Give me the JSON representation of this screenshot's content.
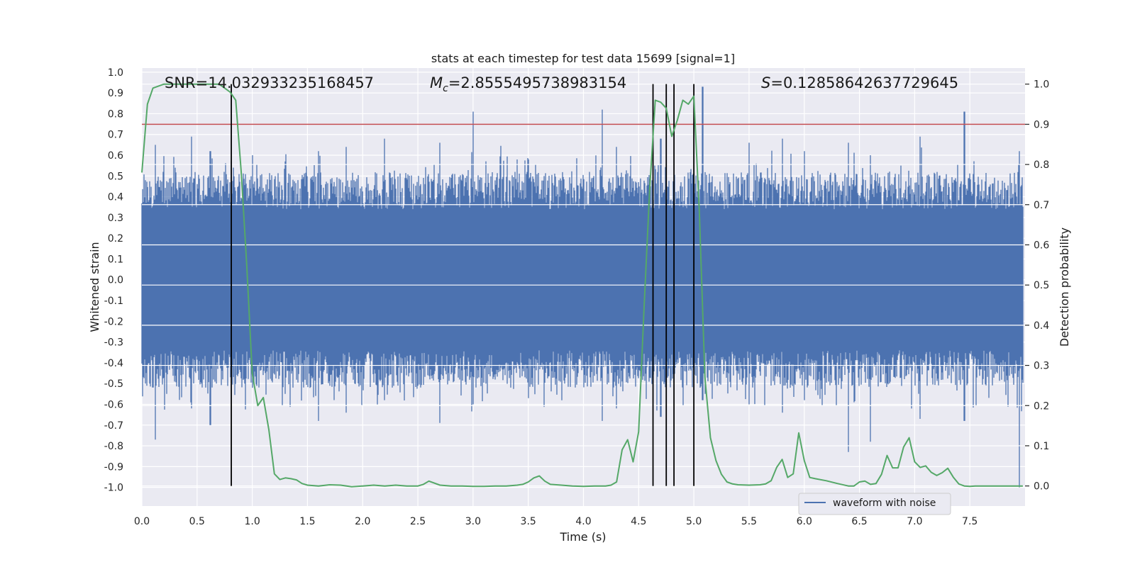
{
  "chart_data": {
    "type": "line",
    "title": "stats at each timestep for test data 15699 [signal=1]",
    "xlabel": "Time (s)",
    "ylabel_left": "Whitened strain",
    "ylabel_right": "Detection probability",
    "xlim": [
      0.0,
      8.0
    ],
    "ylim_left": [
      -1.09,
      1.02
    ],
    "ylim_right": [
      -0.05,
      1.04
    ],
    "x_ticks": [
      "0.0",
      "0.5",
      "1.0",
      "1.5",
      "2.0",
      "2.5",
      "3.0",
      "3.5",
      "4.0",
      "4.5",
      "5.0",
      "5.5",
      "6.0",
      "6.5",
      "7.0",
      "7.5"
    ],
    "y_left_ticks": [
      "1.0",
      "0.9",
      "0.8",
      "0.7",
      "0.6",
      "0.5",
      "0.4",
      "0.3",
      "0.2",
      "0.1",
      "0.0",
      "-0.1",
      "-0.2",
      "-0.3",
      "-0.4",
      "-0.5",
      "-0.6",
      "-0.7",
      "-0.8",
      "-0.9",
      "-1.0"
    ],
    "y_right_ticks": [
      "0.0",
      "0.1",
      "0.2",
      "0.3",
      "0.4",
      "0.5",
      "0.6",
      "0.7",
      "0.8",
      "0.9",
      "1.0"
    ],
    "grid": true,
    "legend_position": "lower-right",
    "annotations": {
      "snr": "SNR=14.032933235168457",
      "mc_symbol": "M",
      "mc_sub": "c",
      "mc_value": "=2.8555495738983154",
      "s_symbol": "S",
      "s_value": "=0.12858642637729645"
    },
    "threshold": {
      "value": 0.9,
      "axis": "right",
      "color": "#c44e52"
    },
    "vertical_lines_x": [
      0.81,
      4.63,
      4.75,
      4.82,
      5.0
    ],
    "series": [
      {
        "name": "waveform with noise",
        "axis": "left",
        "color": "#4c72b0",
        "envelope_peaks": [
          [
            0.03,
            0.48,
            -0.5
          ],
          [
            0.12,
            0.65,
            -0.77
          ],
          [
            0.45,
            0.69,
            -0.62
          ],
          [
            0.62,
            0.62,
            -0.7
          ],
          [
            1.0,
            0.6,
            -0.52
          ],
          [
            1.3,
            0.57,
            -0.55
          ],
          [
            1.6,
            0.62,
            -0.68
          ],
          [
            1.85,
            0.64,
            -0.64
          ],
          [
            2.2,
            0.68,
            -0.58
          ],
          [
            2.7,
            0.66,
            -0.69
          ],
          [
            3.0,
            0.81,
            -0.6
          ],
          [
            3.5,
            0.58,
            -0.57
          ],
          [
            4.17,
            0.82,
            -0.68
          ],
          [
            4.3,
            0.64,
            -0.62
          ],
          [
            4.7,
            0.68,
            -0.66
          ],
          [
            5.08,
            0.93,
            -0.58
          ],
          [
            5.5,
            0.66,
            -0.6
          ],
          [
            5.8,
            0.68,
            -0.64
          ],
          [
            6.0,
            0.62,
            -0.58
          ],
          [
            6.4,
            0.66,
            -0.83
          ],
          [
            6.6,
            0.6,
            -0.78
          ],
          [
            7.05,
            0.69,
            -0.67
          ],
          [
            7.45,
            0.81,
            -0.68
          ],
          [
            7.95,
            0.62,
            -1.0
          ]
        ]
      },
      {
        "name": "",
        "axis": "right",
        "color": "#55a868",
        "x": [
          0.0,
          0.05,
          0.1,
          0.2,
          0.3,
          0.4,
          0.5,
          0.6,
          0.7,
          0.75,
          0.8,
          0.85,
          0.9,
          0.95,
          1.0,
          1.05,
          1.1,
          1.15,
          1.2,
          1.25,
          1.3,
          1.35,
          1.4,
          1.45,
          1.5,
          1.6,
          1.7,
          1.8,
          1.9,
          2.0,
          2.1,
          2.2,
          2.3,
          2.4,
          2.5,
          2.55,
          2.6,
          2.7,
          2.8,
          2.9,
          3.0,
          3.1,
          3.2,
          3.3,
          3.4,
          3.45,
          3.5,
          3.55,
          3.6,
          3.65,
          3.7,
          3.8,
          3.9,
          4.0,
          4.1,
          4.2,
          4.25,
          4.3,
          4.35,
          4.4,
          4.45,
          4.5,
          4.55,
          4.6,
          4.65,
          4.7,
          4.75,
          4.8,
          4.85,
          4.9,
          4.95,
          5.0,
          5.05,
          5.1,
          5.15,
          5.2,
          5.25,
          5.3,
          5.35,
          5.4,
          5.5,
          5.6,
          5.65,
          5.7,
          5.75,
          5.8,
          5.85,
          5.9,
          5.95,
          6.0,
          6.05,
          6.1,
          6.2,
          6.3,
          6.4,
          6.45,
          6.5,
          6.55,
          6.6,
          6.65,
          6.7,
          6.75,
          6.8,
          6.85,
          6.9,
          6.95,
          7.0,
          7.05,
          7.1,
          7.15,
          7.2,
          7.25,
          7.3,
          7.35,
          7.4,
          7.45,
          7.5,
          7.55,
          7.6,
          7.7,
          7.8,
          7.9,
          7.98
        ],
        "y": [
          0.78,
          0.95,
          0.99,
          1.0,
          1.0,
          1.0,
          1.0,
          1.0,
          1.0,
          0.99,
          0.98,
          0.96,
          0.78,
          0.55,
          0.28,
          0.2,
          0.22,
          0.14,
          0.03,
          0.016,
          0.02,
          0.018,
          0.015,
          0.006,
          0.002,
          0.0,
          0.003,
          0.002,
          -0.002,
          0.0,
          0.002,
          0.0,
          0.002,
          0.0,
          0.0,
          0.004,
          0.012,
          0.002,
          0.0,
          0.0,
          -0.001,
          -0.001,
          0.0,
          0.0,
          0.002,
          0.004,
          0.01,
          0.02,
          0.025,
          0.012,
          0.004,
          0.002,
          0.0,
          -0.001,
          0.0,
          0.0,
          0.002,
          0.01,
          0.09,
          0.115,
          0.06,
          0.135,
          0.45,
          0.74,
          0.96,
          0.955,
          0.94,
          0.87,
          0.91,
          0.96,
          0.95,
          0.97,
          0.68,
          0.27,
          0.12,
          0.063,
          0.029,
          0.01,
          0.005,
          0.003,
          0.002,
          0.003,
          0.005,
          0.013,
          0.046,
          0.066,
          0.021,
          0.03,
          0.132,
          0.063,
          0.021,
          0.018,
          0.013,
          0.006,
          0.0,
          0.0,
          0.01,
          0.012,
          0.004,
          0.006,
          0.029,
          0.076,
          0.045,
          0.045,
          0.097,
          0.12,
          0.06,
          0.046,
          0.05,
          0.034,
          0.026,
          0.033,
          0.044,
          0.022,
          0.005,
          0.0,
          -0.001,
          0.0,
          0.0,
          0.0,
          0.0,
          0.0,
          0.0
        ]
      }
    ]
  }
}
